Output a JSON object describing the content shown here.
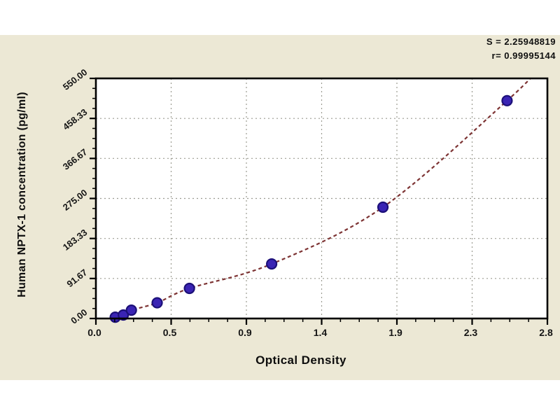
{
  "page": {
    "background": "#ffffff",
    "panel_background": "#ece8d5"
  },
  "annotations": {
    "line1": "S = 2.25948819",
    "line2": "r= 0.99995144"
  },
  "chart_data": {
    "type": "scatter",
    "title": "",
    "xlabel": "Optical Density",
    "ylabel": "Human NPTX-1 concentration (pg/ml)",
    "xlim": [
      0,
      2.8
    ],
    "ylim": [
      0,
      550
    ],
    "x_ticks": {
      "values": [
        0,
        0.4667,
        0.9333,
        1.4,
        1.8667,
        2.3333,
        2.8
      ],
      "labels": [
        "0.0",
        "0.5",
        "0.9",
        "1.4",
        "1.9",
        "2.3",
        "2.8"
      ],
      "minor_divisions": 4
    },
    "y_ticks": {
      "values": [
        0,
        91.67,
        183.33,
        275,
        366.67,
        458.33,
        550
      ],
      "labels": [
        "0.00",
        "91.67",
        "183.33",
        "275.00",
        "366.67",
        "458.33",
        "550.00"
      ],
      "minor_divisions": 4
    },
    "grid": {
      "style": "dashed",
      "color": "#9c9c92",
      "on": true
    },
    "legend": {
      "visible": false
    },
    "axis_color": "#000000",
    "plot_background": "#ffffff",
    "series": [
      {
        "name": "standard-points",
        "type": "scatter",
        "marker": "circle",
        "color": "#3a24b4",
        "edge_color": "#1c1078",
        "points": [
          [
            0.12,
            3
          ],
          [
            0.17,
            8
          ],
          [
            0.22,
            19
          ],
          [
            0.38,
            36
          ],
          [
            0.58,
            69
          ],
          [
            1.09,
            125
          ],
          [
            1.78,
            255
          ],
          [
            2.55,
            499
          ]
        ]
      }
    ],
    "fit_curve": {
      "color": "#7d3333",
      "style": "dashed",
      "start": [
        0.05,
        -6
      ],
      "end": [
        2.78,
        585
      ]
    }
  }
}
